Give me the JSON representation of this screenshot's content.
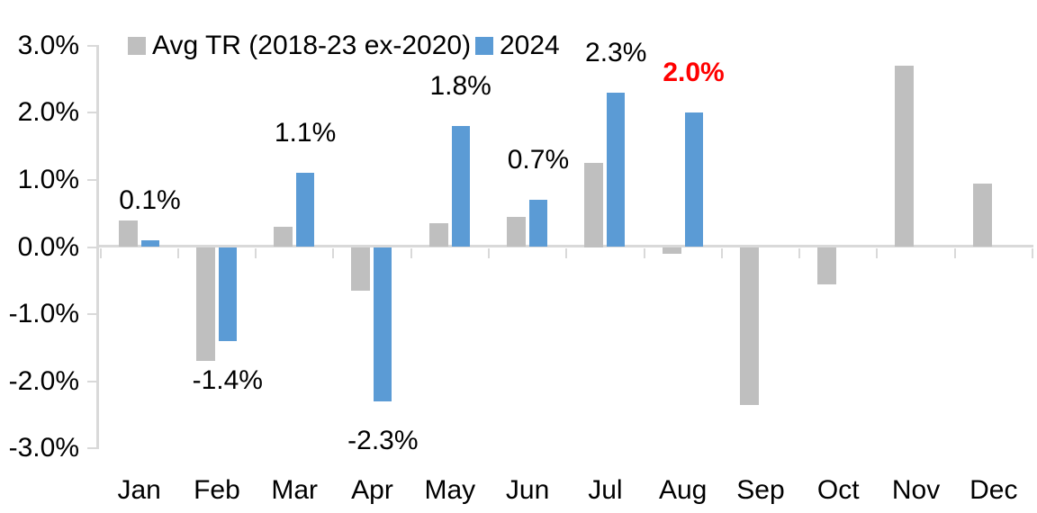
{
  "chart_data": {
    "type": "bar",
    "title": "",
    "xlabel": "",
    "ylabel": "",
    "categories": [
      "Jan",
      "Feb",
      "Mar",
      "Apr",
      "May",
      "Jun",
      "Jul",
      "Aug",
      "Sep",
      "Oct",
      "Nov",
      "Dec"
    ],
    "series": [
      {
        "name": "Avg TR (2018-23 ex-2020)",
        "color": "#BFBFBF",
        "values": [
          0.4,
          -1.7,
          0.3,
          -0.65,
          0.35,
          0.45,
          1.25,
          -0.1,
          -2.35,
          -0.55,
          2.7,
          0.95
        ]
      },
      {
        "name": "2024",
        "color": "#5B9BD5",
        "values": [
          0.1,
          -1.4,
          1.1,
          -2.3,
          1.8,
          0.7,
          2.3,
          2.0,
          null,
          null,
          null,
          null
        ]
      }
    ],
    "data_labels": [
      {
        "text": "0.1%",
        "color": "#000000",
        "bold": false
      },
      {
        "text": "-1.4%",
        "color": "#000000",
        "bold": false
      },
      {
        "text": "1.1%",
        "color": "#000000",
        "bold": false
      },
      {
        "text": "-2.3%",
        "color": "#000000",
        "bold": false
      },
      {
        "text": "1.8%",
        "color": "#000000",
        "bold": false
      },
      {
        "text": "0.7%",
        "color": "#000000",
        "bold": false
      },
      {
        "text": "2.3%",
        "color": "#000000",
        "bold": false
      },
      {
        "text": "2.0%",
        "color": "#FF0000",
        "bold": true
      },
      null,
      null,
      null,
      null
    ],
    "y_axis": {
      "min": -3.0,
      "max": 3.0,
      "ticks": [
        {
          "label": "3.0%",
          "value": 3
        },
        {
          "label": "2.0%",
          "value": 2
        },
        {
          "label": "1.0%",
          "value": 1
        },
        {
          "label": "0.0%",
          "value": 0
        },
        {
          "label": "-1.0%",
          "value": -1
        },
        {
          "label": "-2.0%",
          "value": -2
        },
        {
          "label": "-3.0%",
          "value": -3
        }
      ]
    },
    "legend_position": "top",
    "grid": false
  },
  "colors": {
    "axis": "#D9D9D9",
    "text": "#000000",
    "highlight": "#FF0000",
    "series_avg": "#BFBFBF",
    "series_2024": "#5B9BD5"
  }
}
